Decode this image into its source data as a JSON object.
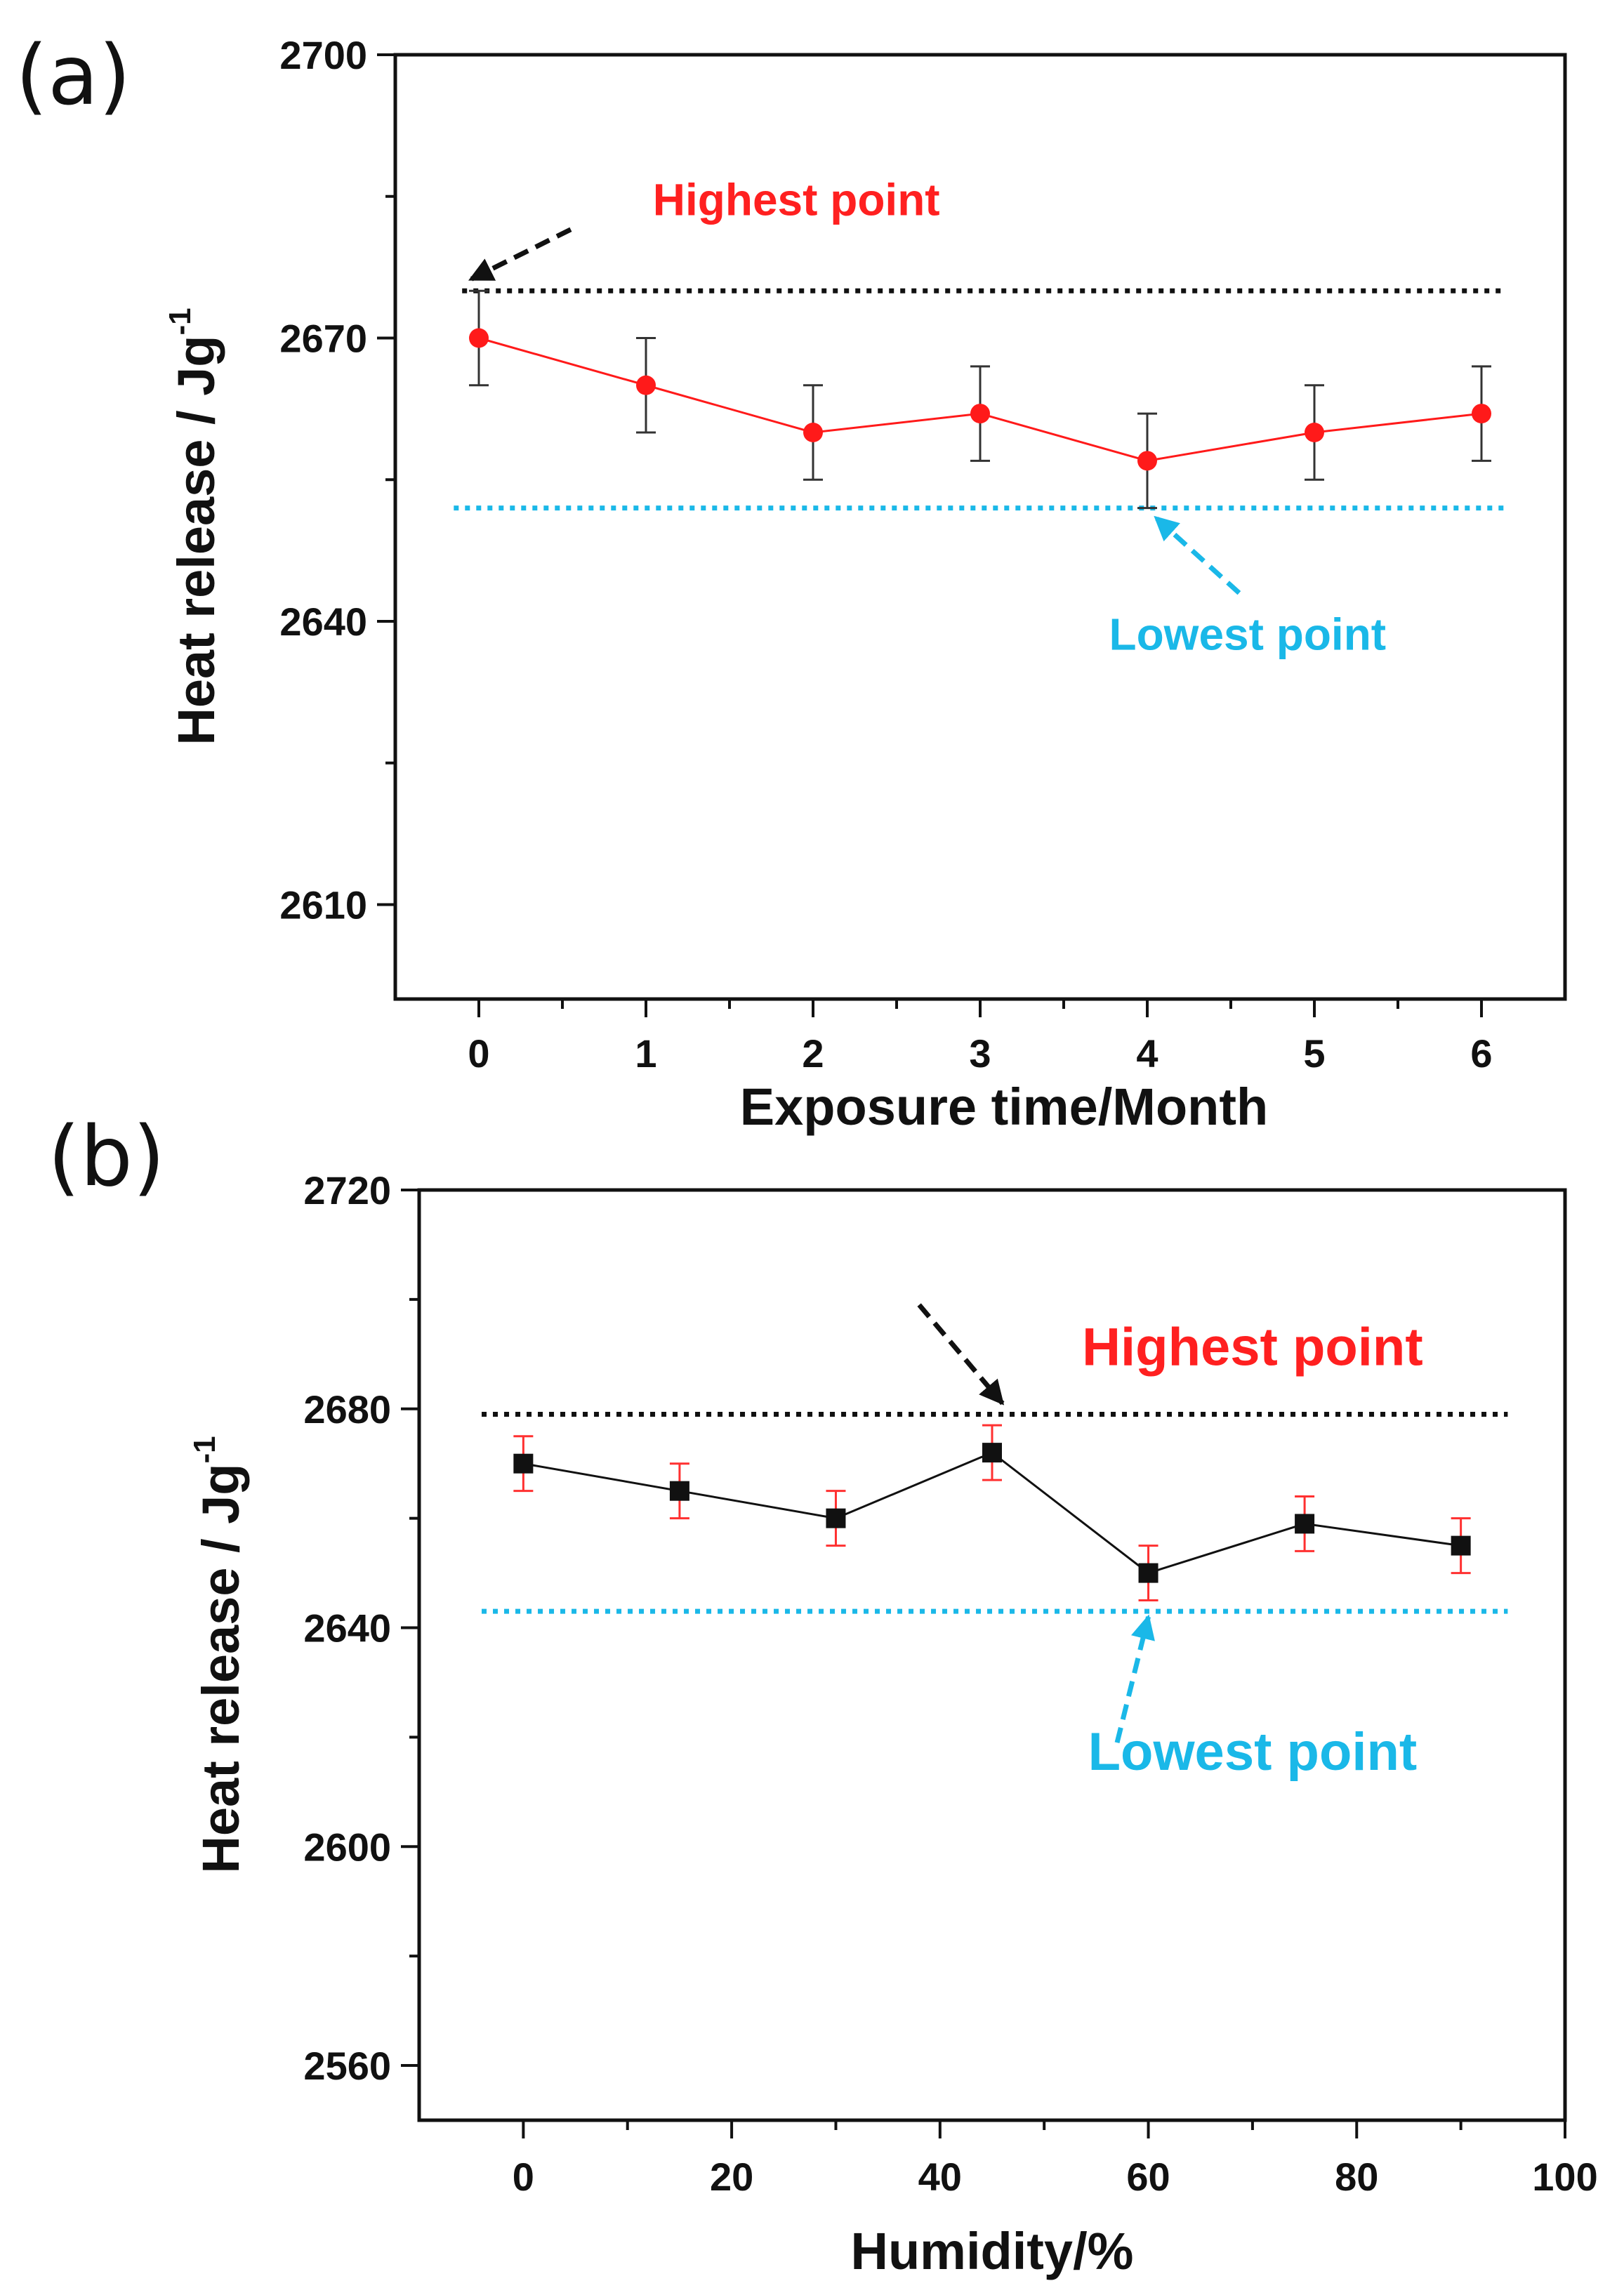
{
  "chart_data": [
    {
      "panel": "(a)",
      "type": "line",
      "xlabel": "Exposure time/Month",
      "ylabel": "Heat release / Jg",
      "ylabel_sup": "-1",
      "xlim": [
        -0.5,
        6.5
      ],
      "ylim": [
        2600,
        2700
      ],
      "xticks": [
        0,
        1,
        2,
        3,
        4,
        5,
        6
      ],
      "yticks": [
        2610,
        2640,
        2670,
        2700
      ],
      "series": [
        {
          "name": "Heat release",
          "x": [
            0,
            1,
            2,
            3,
            4,
            5,
            6
          ],
          "y": [
            2670,
            2665,
            2660,
            2662,
            2657,
            2660,
            2662
          ],
          "error": [
            5,
            5,
            5,
            5,
            5,
            5,
            5
          ],
          "marker": "circle",
          "color": "#ff1a1a",
          "error_color": "#333333"
        }
      ],
      "reference_lines": [
        {
          "name": "highest",
          "y": 2675,
          "x_from": -0.1,
          "x_to": 6.15,
          "color": "#111111"
        },
        {
          "name": "lowest",
          "y": 2652,
          "x_from": -0.15,
          "x_to": 6.15,
          "color": "#1ab8e8"
        }
      ],
      "annotations": [
        {
          "text": "Highest point",
          "x": 1.9,
          "y": 2683,
          "color": "#ff2020",
          "size": 64
        },
        {
          "text": "Lowest point",
          "x": 4.6,
          "y": 2637,
          "color": "#1ab8e8",
          "size": 64
        }
      ],
      "arrows": [
        {
          "from": [
            0.55,
            2681.5
          ],
          "to": [
            -0.05,
            2676.2
          ],
          "color": "#111111"
        },
        {
          "from": [
            4.55,
            2643
          ],
          "to": [
            4.05,
            2651
          ],
          "color": "#1ab8e8"
        }
      ]
    },
    {
      "panel": "(b)",
      "type": "line",
      "xlabel": "Humidity/%",
      "ylabel": "Heat release / Jg",
      "ylabel_sup": "-1",
      "xlim": [
        -10,
        100
      ],
      "ylim": [
        2550,
        2720
      ],
      "xticks": [
        0,
        20,
        40,
        60,
        80,
        100
      ],
      "yticks": [
        2560,
        2600,
        2640,
        2680,
        2720
      ],
      "series": [
        {
          "name": "Heat release",
          "x": [
            0,
            15,
            30,
            45,
            60,
            75,
            90
          ],
          "y": [
            2670,
            2665,
            2660,
            2672,
            2650,
            2659,
            2655
          ],
          "error": [
            5,
            5,
            5,
            5,
            5,
            5,
            5
          ],
          "marker": "square",
          "color": "#111111",
          "error_color": "#ff3030"
        }
      ],
      "reference_lines": [
        {
          "name": "highest",
          "y": 2679,
          "x_from": -4,
          "x_to": 94.5,
          "color": "#111111"
        },
        {
          "name": "lowest",
          "y": 2643,
          "x_from": -4,
          "x_to": 94.5,
          "color": "#1ab8e8"
        }
      ],
      "annotations": [
        {
          "text": "Highest point",
          "x": 70,
          "y": 2688,
          "color": "#ff2020",
          "size": 76
        },
        {
          "text": "Lowest point",
          "x": 70,
          "y": 2614,
          "color": "#1ab8e8",
          "size": 76
        }
      ],
      "arrows": [
        {
          "from": [
            38,
            2699
          ],
          "to": [
            46,
            2681
          ],
          "color": "#111111"
        },
        {
          "from": [
            57,
            2619
          ],
          "to": [
            60,
            2642
          ],
          "color": "#1ab8e8"
        }
      ]
    }
  ]
}
